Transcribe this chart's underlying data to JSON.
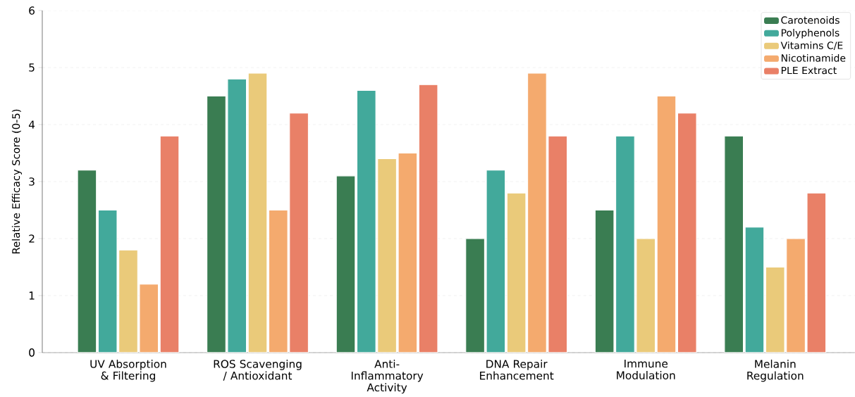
{
  "chart_data": {
    "type": "bar",
    "ylabel": "Relative Efficacy Score (0-5)",
    "categories": [
      "UV Absorption & Filtering",
      "ROS Scavenging / Antioxidant",
      "Anti-Inflammatory Activity",
      "DNA Repair Enhancement",
      "Immune Modulation",
      "Melanin Regulation"
    ],
    "series": [
      {
        "name": "Carotenoids",
        "color": "#3a7d52",
        "values": [
          3.2,
          4.5,
          3.1,
          2.0,
          2.5,
          3.8
        ]
      },
      {
        "name": "Polyphenols",
        "color": "#42a99b",
        "values": [
          2.5,
          4.8,
          4.6,
          3.2,
          3.8,
          2.2
        ]
      },
      {
        "name": "Vitamins C/E",
        "color": "#eaca7a",
        "values": [
          1.8,
          4.9,
          3.4,
          2.8,
          2.0,
          1.5
        ]
      },
      {
        "name": "Nicotinamide",
        "color": "#f4aa6e",
        "values": [
          1.2,
          2.5,
          3.5,
          4.9,
          4.5,
          2.0
        ]
      },
      {
        "name": "PLE Extract",
        "color": "#e98067",
        "values": [
          3.8,
          4.2,
          4.7,
          3.8,
          4.2,
          2.8
        ]
      }
    ],
    "ylim": [
      0,
      6
    ],
    "yticks": [
      0,
      1,
      2,
      3,
      4,
      5,
      6
    ],
    "grid": "y",
    "legend": "top right"
  }
}
